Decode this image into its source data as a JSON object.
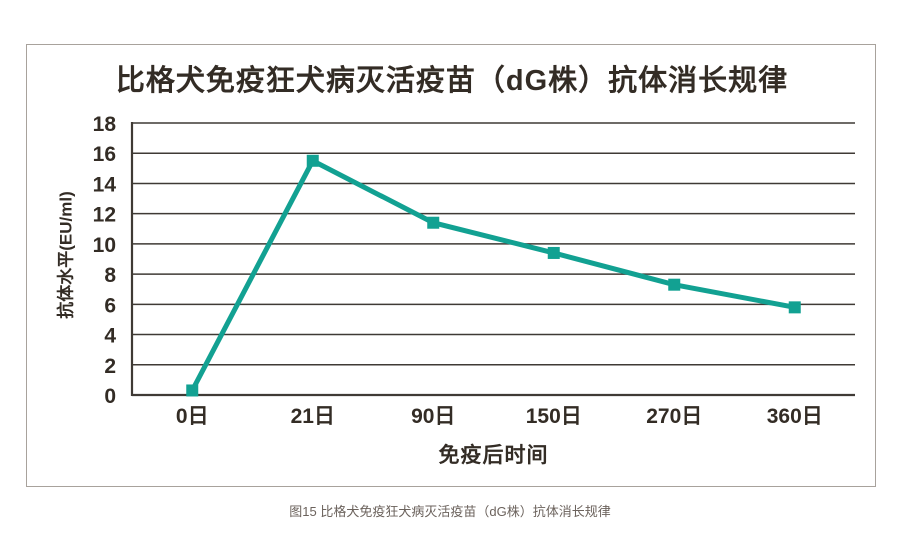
{
  "caption": "图15 比格犬免疫狂犬病灭活疫苗（dG株）抗体消长规律",
  "colors": {
    "line": "#12a192",
    "grid": "#3f3a35",
    "text": "#332c25",
    "caption_text": "#6b625c",
    "border": "#a8a29c",
    "background": "#ffffff"
  },
  "chart_data": {
    "type": "line",
    "title": "比格犬免疫狂犬病灭活疫苗（dG株）抗体消长规律",
    "categories": [
      "0日",
      "21日",
      "90日",
      "150日",
      "270日",
      "360日"
    ],
    "values": [
      0.3,
      15.5,
      11.4,
      9.4,
      7.3,
      5.8
    ],
    "xlabel": "免疫后时间",
    "ylabel": "抗体水平(EU/ml)",
    "ylim": [
      0,
      18
    ],
    "ytick_step": 2,
    "grid": "horizontal",
    "legend": "none",
    "marker": "square",
    "line_color": "#12a192"
  }
}
